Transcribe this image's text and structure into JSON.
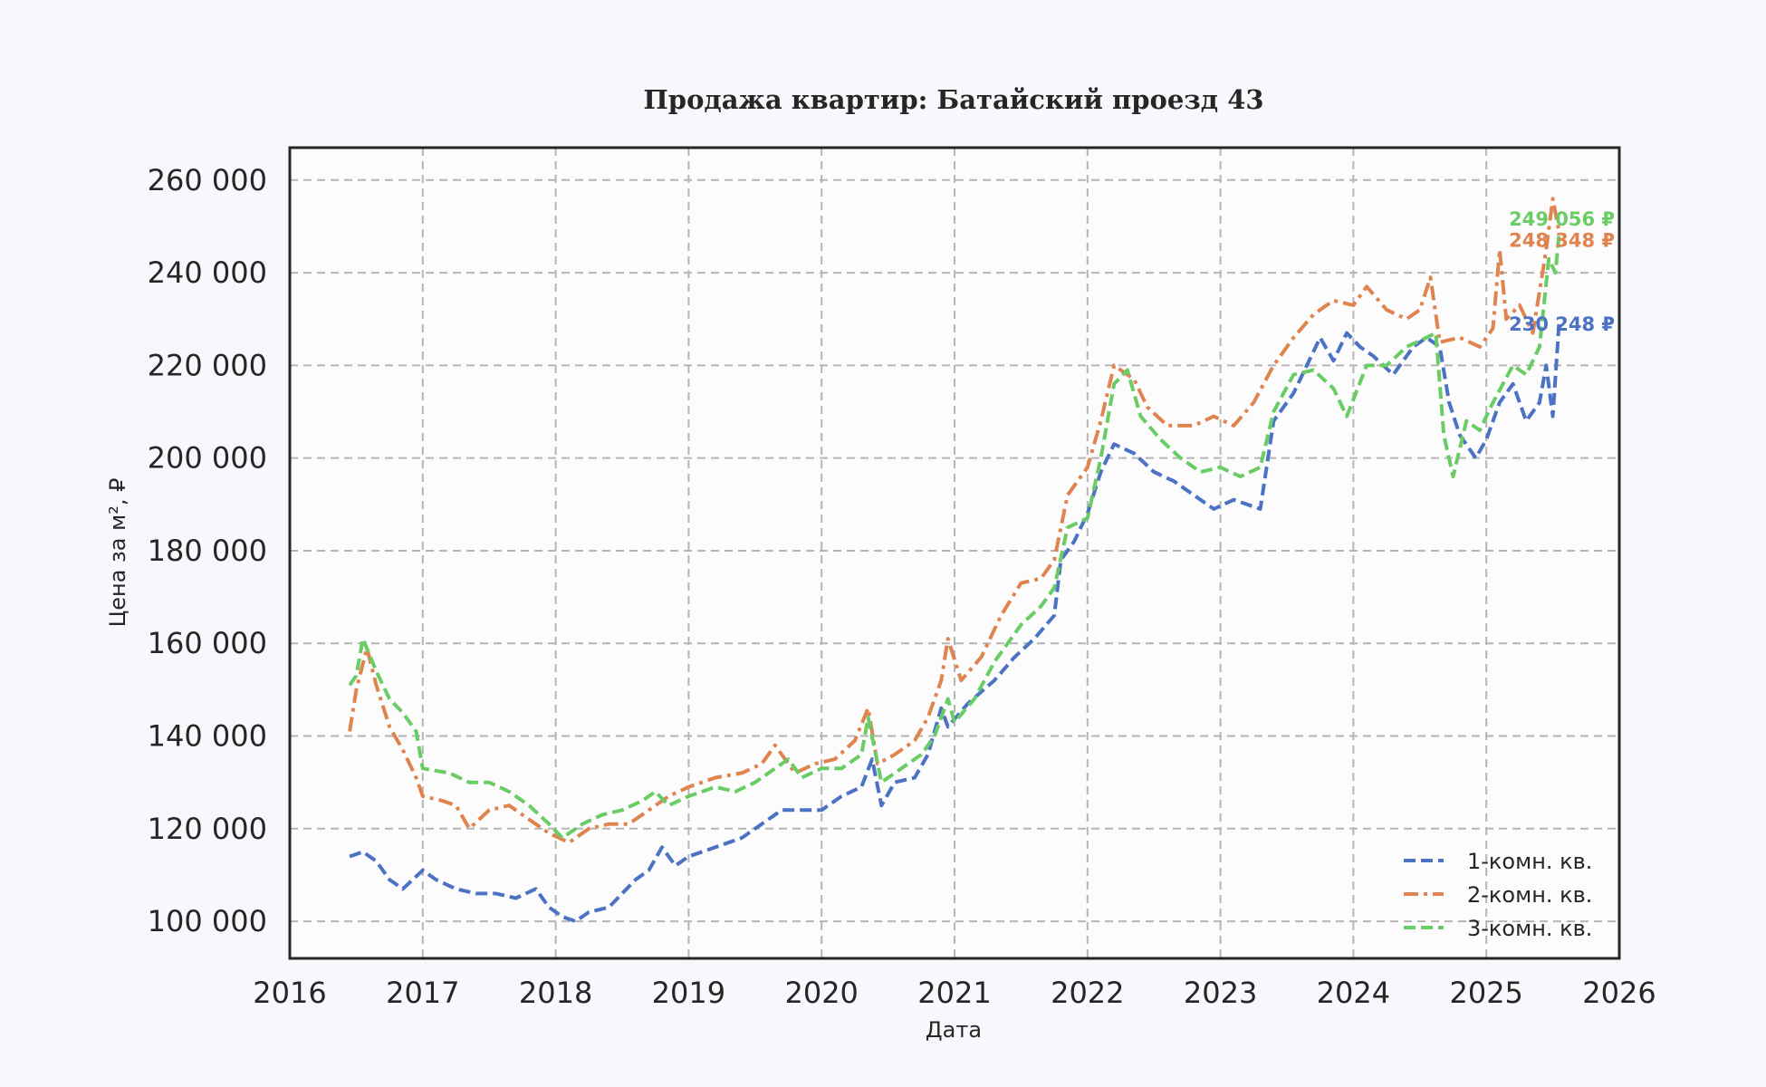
{
  "chart_data": {
    "type": "line",
    "title": "Продажа квартир: Батайский проезд 43",
    "xlabel": "Дата",
    "ylabel": "Цена за м², ₽",
    "xlim": [
      2016,
      2026
    ],
    "ylim": [
      92000,
      267000
    ],
    "x_ticks": [
      {
        "value": 2016,
        "label": "2016"
      },
      {
        "value": 2017,
        "label": "2017"
      },
      {
        "value": 2018,
        "label": "2018"
      },
      {
        "value": 2019,
        "label": "2019"
      },
      {
        "value": 2020,
        "label": "2020"
      },
      {
        "value": 2021,
        "label": "2021"
      },
      {
        "value": 2022,
        "label": "2022"
      },
      {
        "value": 2023,
        "label": "2023"
      },
      {
        "value": 2024,
        "label": "2024"
      },
      {
        "value": 2025,
        "label": "2025"
      },
      {
        "value": 2026,
        "label": "2026"
      }
    ],
    "y_ticks": [
      {
        "value": 100000,
        "label": "100 000"
      },
      {
        "value": 120000,
        "label": "120 000"
      },
      {
        "value": 140000,
        "label": "140 000"
      },
      {
        "value": 160000,
        "label": "160 000"
      },
      {
        "value": 180000,
        "label": "180 000"
      },
      {
        "value": 200000,
        "label": "200 000"
      },
      {
        "value": 220000,
        "label": "220 000"
      },
      {
        "value": 240000,
        "label": "240 000"
      },
      {
        "value": 260000,
        "label": "260 000"
      }
    ],
    "grid": true,
    "legend_position": "bottom-right",
    "series": [
      {
        "name": "1-комн. кв.",
        "color": "#4c72c4",
        "dash": "dashed",
        "end_label": "230 248 ₽",
        "points": [
          [
            2016.45,
            114000
          ],
          [
            2016.55,
            115000
          ],
          [
            2016.65,
            113000
          ],
          [
            2016.75,
            109000
          ],
          [
            2016.85,
            107000
          ],
          [
            2017.0,
            111000
          ],
          [
            2017.1,
            109000
          ],
          [
            2017.25,
            107000
          ],
          [
            2017.4,
            106000
          ],
          [
            2017.55,
            106000
          ],
          [
            2017.7,
            105000
          ],
          [
            2017.85,
            107000
          ],
          [
            2017.95,
            103000
          ],
          [
            2018.05,
            101000
          ],
          [
            2018.15,
            100000
          ],
          [
            2018.25,
            102000
          ],
          [
            2018.4,
            103000
          ],
          [
            2018.5,
            106000
          ],
          [
            2018.6,
            109000
          ],
          [
            2018.7,
            111000
          ],
          [
            2018.8,
            116000
          ],
          [
            2018.9,
            112000
          ],
          [
            2019.0,
            114000
          ],
          [
            2019.2,
            116000
          ],
          [
            2019.4,
            118000
          ],
          [
            2019.55,
            121000
          ],
          [
            2019.7,
            124000
          ],
          [
            2019.85,
            124000
          ],
          [
            2020.0,
            124000
          ],
          [
            2020.15,
            127000
          ],
          [
            2020.3,
            129000
          ],
          [
            2020.38,
            135000
          ],
          [
            2020.45,
            125000
          ],
          [
            2020.55,
            130000
          ],
          [
            2020.7,
            131000
          ],
          [
            2020.8,
            136000
          ],
          [
            2020.9,
            146000
          ],
          [
            2020.95,
            142000
          ],
          [
            2021.1,
            147000
          ],
          [
            2021.3,
            152000
          ],
          [
            2021.45,
            157000
          ],
          [
            2021.6,
            161000
          ],
          [
            2021.75,
            166000
          ],
          [
            2021.8,
            178000
          ],
          [
            2021.9,
            182000
          ],
          [
            2022.0,
            188000
          ],
          [
            2022.1,
            197000
          ],
          [
            2022.2,
            203000
          ],
          [
            2022.35,
            201000
          ],
          [
            2022.5,
            197000
          ],
          [
            2022.65,
            195000
          ],
          [
            2022.8,
            192000
          ],
          [
            2022.95,
            189000
          ],
          [
            2023.1,
            191000
          ],
          [
            2023.3,
            189000
          ],
          [
            2023.4,
            208000
          ],
          [
            2023.55,
            214000
          ],
          [
            2023.65,
            220000
          ],
          [
            2023.75,
            226000
          ],
          [
            2023.85,
            221000
          ],
          [
            2023.95,
            227000
          ],
          [
            2024.05,
            224000
          ],
          [
            2024.15,
            222000
          ],
          [
            2024.3,
            218000
          ],
          [
            2024.45,
            224000
          ],
          [
            2024.55,
            226000
          ],
          [
            2024.65,
            224000
          ],
          [
            2024.72,
            212000
          ],
          [
            2024.8,
            205000
          ],
          [
            2024.92,
            200000
          ],
          [
            2025.0,
            204000
          ],
          [
            2025.1,
            212000
          ],
          [
            2025.2,
            216000
          ],
          [
            2025.3,
            208000
          ],
          [
            2025.4,
            212000
          ],
          [
            2025.45,
            220000
          ],
          [
            2025.5,
            209000
          ],
          [
            2025.55,
            230248
          ]
        ]
      },
      {
        "name": "2-комн. кв.",
        "color": "#e0844f",
        "dash": "dashdot",
        "end_label": "248 348 ₽",
        "points": [
          [
            2016.45,
            141000
          ],
          [
            2016.5,
            150000
          ],
          [
            2016.58,
            159000
          ],
          [
            2016.65,
            151000
          ],
          [
            2016.75,
            142000
          ],
          [
            2016.85,
            137000
          ],
          [
            2016.95,
            131000
          ],
          [
            2017.0,
            127000
          ],
          [
            2017.15,
            126000
          ],
          [
            2017.25,
            125000
          ],
          [
            2017.35,
            120000
          ],
          [
            2017.5,
            124000
          ],
          [
            2017.65,
            125000
          ],
          [
            2017.8,
            122000
          ],
          [
            2017.95,
            119000
          ],
          [
            2018.1,
            117000
          ],
          [
            2018.25,
            120000
          ],
          [
            2018.4,
            121000
          ],
          [
            2018.55,
            121000
          ],
          [
            2018.7,
            124000
          ],
          [
            2018.85,
            127000
          ],
          [
            2019.0,
            129000
          ],
          [
            2019.2,
            131000
          ],
          [
            2019.4,
            132000
          ],
          [
            2019.55,
            134000
          ],
          [
            2019.65,
            138000
          ],
          [
            2019.8,
            132000
          ],
          [
            2019.95,
            134000
          ],
          [
            2020.1,
            135000
          ],
          [
            2020.25,
            139000
          ],
          [
            2020.35,
            146000
          ],
          [
            2020.42,
            134000
          ],
          [
            2020.55,
            136000
          ],
          [
            2020.7,
            139000
          ],
          [
            2020.8,
            144000
          ],
          [
            2020.9,
            152000
          ],
          [
            2020.95,
            161000
          ],
          [
            2021.05,
            152000
          ],
          [
            2021.2,
            157000
          ],
          [
            2021.35,
            166000
          ],
          [
            2021.5,
            173000
          ],
          [
            2021.65,
            174000
          ],
          [
            2021.75,
            178000
          ],
          [
            2021.85,
            192000
          ],
          [
            2022.0,
            198000
          ],
          [
            2022.1,
            208000
          ],
          [
            2022.2,
            220000
          ],
          [
            2022.35,
            217000
          ],
          [
            2022.45,
            211000
          ],
          [
            2022.6,
            207000
          ],
          [
            2022.8,
            207000
          ],
          [
            2022.95,
            209000
          ],
          [
            2023.1,
            207000
          ],
          [
            2023.25,
            212000
          ],
          [
            2023.4,
            220000
          ],
          [
            2023.55,
            226000
          ],
          [
            2023.7,
            231000
          ],
          [
            2023.85,
            234000
          ],
          [
            2024.0,
            233000
          ],
          [
            2024.1,
            237000
          ],
          [
            2024.25,
            232000
          ],
          [
            2024.4,
            230000
          ],
          [
            2024.5,
            232000
          ],
          [
            2024.58,
            239000
          ],
          [
            2024.65,
            225000
          ],
          [
            2024.8,
            226000
          ],
          [
            2024.95,
            224000
          ],
          [
            2025.05,
            228000
          ],
          [
            2025.1,
            245000
          ],
          [
            2025.15,
            230000
          ],
          [
            2025.25,
            233000
          ],
          [
            2025.35,
            227000
          ],
          [
            2025.45,
            245000
          ],
          [
            2025.5,
            256000
          ],
          [
            2025.55,
            248348
          ]
        ]
      },
      {
        "name": "3-комн. кв.",
        "color": "#6acc65",
        "dash": "dashed",
        "end_label": "249 056 ₽",
        "points": [
          [
            2016.45,
            151000
          ],
          [
            2016.5,
            153000
          ],
          [
            2016.55,
            161000
          ],
          [
            2016.65,
            154000
          ],
          [
            2016.75,
            148000
          ],
          [
            2016.85,
            145000
          ],
          [
            2016.95,
            141000
          ],
          [
            2017.0,
            133000
          ],
          [
            2017.2,
            132000
          ],
          [
            2017.35,
            130000
          ],
          [
            2017.5,
            130000
          ],
          [
            2017.65,
            128000
          ],
          [
            2017.8,
            125000
          ],
          [
            2017.95,
            121000
          ],
          [
            2018.05,
            118000
          ],
          [
            2018.2,
            121000
          ],
          [
            2018.35,
            123000
          ],
          [
            2018.5,
            124000
          ],
          [
            2018.65,
            126000
          ],
          [
            2018.75,
            128000
          ],
          [
            2018.85,
            125000
          ],
          [
            2019.0,
            127000
          ],
          [
            2019.2,
            129000
          ],
          [
            2019.35,
            128000
          ],
          [
            2019.5,
            130000
          ],
          [
            2019.65,
            133000
          ],
          [
            2019.75,
            135000
          ],
          [
            2019.85,
            131000
          ],
          [
            2020.0,
            133000
          ],
          [
            2020.15,
            133000
          ],
          [
            2020.3,
            136000
          ],
          [
            2020.35,
            144000
          ],
          [
            2020.45,
            130000
          ],
          [
            2020.6,
            133000
          ],
          [
            2020.75,
            136000
          ],
          [
            2020.85,
            140000
          ],
          [
            2020.95,
            148000
          ],
          [
            2021.0,
            143000
          ],
          [
            2021.15,
            148000
          ],
          [
            2021.3,
            156000
          ],
          [
            2021.5,
            164000
          ],
          [
            2021.65,
            168000
          ],
          [
            2021.75,
            172000
          ],
          [
            2021.85,
            185000
          ],
          [
            2022.0,
            187000
          ],
          [
            2022.1,
            200000
          ],
          [
            2022.2,
            216000
          ],
          [
            2022.3,
            219000
          ],
          [
            2022.4,
            209000
          ],
          [
            2022.55,
            204000
          ],
          [
            2022.7,
            200000
          ],
          [
            2022.85,
            197000
          ],
          [
            2023.0,
            198000
          ],
          [
            2023.15,
            196000
          ],
          [
            2023.3,
            198000
          ],
          [
            2023.4,
            210000
          ],
          [
            2023.55,
            218000
          ],
          [
            2023.7,
            219000
          ],
          [
            2023.85,
            215000
          ],
          [
            2023.95,
            209000
          ],
          [
            2024.1,
            220000
          ],
          [
            2024.25,
            220000
          ],
          [
            2024.4,
            224000
          ],
          [
            2024.55,
            226000
          ],
          [
            2024.62,
            227000
          ],
          [
            2024.68,
            205000
          ],
          [
            2024.75,
            196000
          ],
          [
            2024.85,
            208000
          ],
          [
            2024.95,
            206000
          ],
          [
            2025.05,
            212000
          ],
          [
            2025.2,
            220000
          ],
          [
            2025.3,
            218000
          ],
          [
            2025.4,
            224000
          ],
          [
            2025.47,
            243000
          ],
          [
            2025.52,
            240000
          ],
          [
            2025.55,
            249056
          ]
        ]
      }
    ]
  }
}
